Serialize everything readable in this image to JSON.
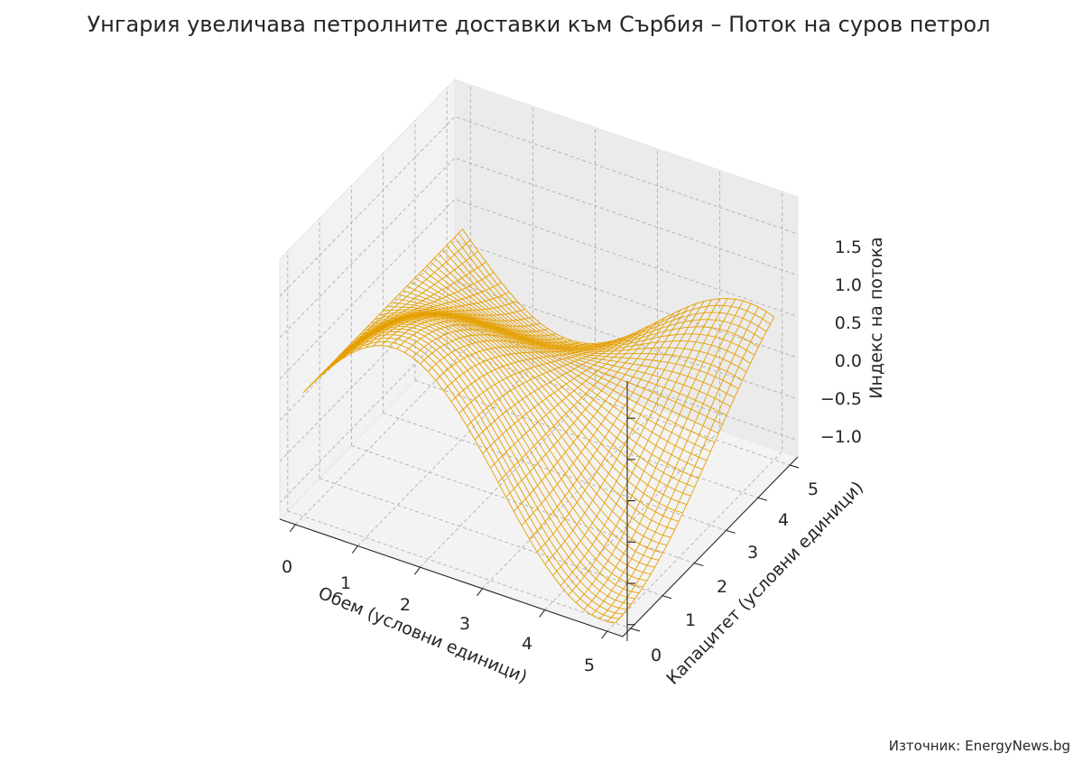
{
  "chart_data": {
    "type": "surface-wireframe-3d",
    "title": "Унгария увеличава петролните доставки към Сърбия – Поток на суров петрол",
    "xlabel": "Обем (условни единици)",
    "ylabel": "Капацитет (условни единици)",
    "zlabel": "Индекс на потока",
    "x_ticks": [
      "0",
      "1",
      "2",
      "3",
      "4",
      "5"
    ],
    "y_ticks": [
      "0",
      "1",
      "2",
      "3",
      "4",
      "5"
    ],
    "z_ticks": [
      "−1.0",
      "−0.5",
      "0.0",
      "0.5",
      "1.0",
      "1.5"
    ],
    "x_range": [
      -0.25,
      5.25
    ],
    "y_range": [
      -0.25,
      5.25
    ],
    "z_range": [
      -1.2,
      1.95
    ],
    "function": "z = sin(x) * cos(y / 2) + 0.3 * cos(x / 2)",
    "grid": true,
    "line_color": "#e69f00",
    "source": "Източник: EnergyNews.bg"
  }
}
